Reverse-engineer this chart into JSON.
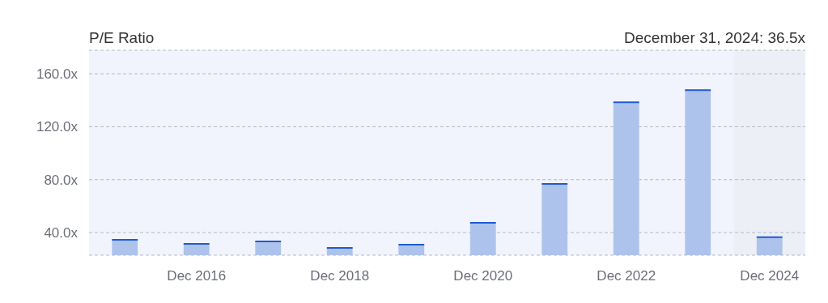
{
  "chart_data": {
    "type": "bar",
    "title": "P/E Ratio",
    "annotations": [
      "December 31, 2024: 36.5x"
    ],
    "categories": [
      null,
      "Dec 2016",
      null,
      "Dec 2018",
      null,
      "Dec 2020",
      null,
      "Dec 2022",
      null,
      "Dec 2024"
    ],
    "values": [
      34.5,
      31.4,
      33.3,
      28.4,
      30.9,
      47.4,
      76.8,
      138.4,
      147.7,
      36.5
    ],
    "color": "#aec3ec",
    "ylim": [
      22.9,
      177.8
    ],
    "yticks": [
      {
        "value": 40,
        "label": "40.0x"
      },
      {
        "value": 80,
        "label": "80.0x"
      },
      {
        "value": 120,
        "label": "120.0x"
      },
      {
        "value": 160,
        "label": "160.0x"
      }
    ],
    "grid": "y",
    "bands": [
      {
        "axis": "x",
        "from": "Dec 2024",
        "to": "Dec 2024",
        "color": "#eceff5"
      }
    ]
  }
}
